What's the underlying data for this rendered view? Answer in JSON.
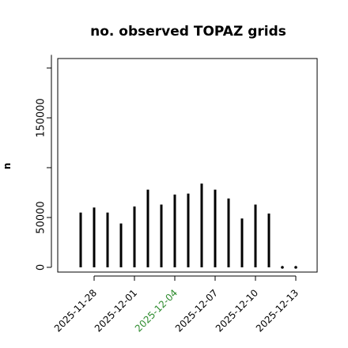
{
  "chart_data": {
    "type": "bar",
    "title": "no. observed TOPAZ grids",
    "xlabel": "",
    "ylabel": "n",
    "ylim": [
      0,
      210000
    ],
    "yticks": [
      0,
      50000,
      150000
    ],
    "xticks": [
      "2025-11-28",
      "2025-12-01",
      "2025-12-04",
      "2025-12-07",
      "2025-12-10",
      "2025-12-13"
    ],
    "highlight_tick": "2025-12-04",
    "highlight_color": "#2e8b2e",
    "x": [
      "2025-11-27",
      "2025-11-28",
      "2025-11-29",
      "2025-11-30",
      "2025-12-01",
      "2025-12-02",
      "2025-12-03",
      "2025-12-04",
      "2025-12-05",
      "2025-12-06",
      "2025-12-07",
      "2025-12-08",
      "2025-12-09",
      "2025-12-10",
      "2025-12-11",
      "2025-12-12",
      "2025-12-13"
    ],
    "values": [
      55000,
      60000,
      55000,
      44000,
      61000,
      78000,
      63000,
      73000,
      74000,
      84000,
      78000,
      69000,
      49000,
      63000,
      54000,
      0,
      0
    ],
    "grid": false
  }
}
